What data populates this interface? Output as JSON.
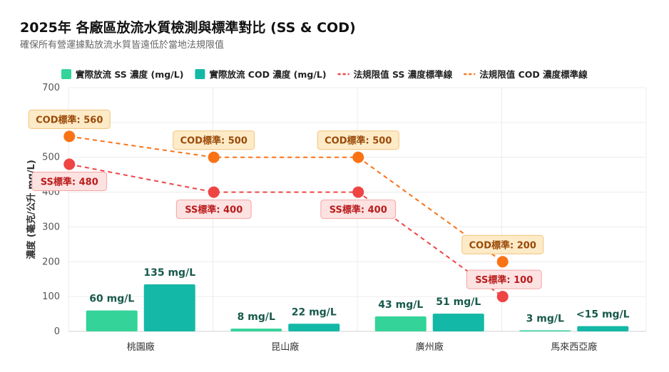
{
  "title": "2025年 各廠區放流水質檢測與標準對比 (SS & COD)",
  "subtitle": "確保所有營運據點放流水質皆遠低於當地法規限值",
  "chart_data": {
    "type": "bar",
    "categories": [
      "桃園廠",
      "昆山廠",
      "廣州廠",
      "馬來西亞廠"
    ],
    "ylabel": "濃度 (毫克/公升 mg/L)",
    "ylim": [
      0,
      700
    ],
    "yticks": [
      0,
      100,
      200,
      300,
      400,
      500,
      600,
      700
    ],
    "grid": true,
    "legend_position": "top",
    "series": [
      {
        "name": "實際放流 SS 濃度 (mg/L)",
        "type": "bar",
        "color": "#34d399",
        "values": [
          60,
          8,
          43,
          3
        ],
        "labels": [
          "60 mg/L",
          "8 mg/L",
          "43 mg/L",
          "3 mg/L"
        ]
      },
      {
        "name": "實際放流 COD 濃度 (mg/L)",
        "type": "bar",
        "color": "#14b8a6",
        "values": [
          135,
          22,
          51,
          15
        ],
        "labels": [
          "135 mg/L",
          "22 mg/L",
          "51 mg/L",
          "<15 mg/L"
        ]
      },
      {
        "name": "法規限值 SS 濃度標準線",
        "type": "line",
        "style": "dashed",
        "color": "#ef4444",
        "values": [
          480,
          400,
          400,
          100
        ],
        "labels": [
          "SS標準: 480",
          "SS標準: 400",
          "SS標準: 400",
          "SS標準: 100"
        ]
      },
      {
        "name": "法規限值 COD 濃度標準線",
        "type": "line",
        "style": "dashed",
        "color": "#f97316",
        "values": [
          560,
          500,
          500,
          200
        ],
        "labels": [
          "COD標準: 560",
          "COD標準: 500",
          "COD標準: 500",
          "COD標準: 200"
        ]
      }
    ]
  }
}
